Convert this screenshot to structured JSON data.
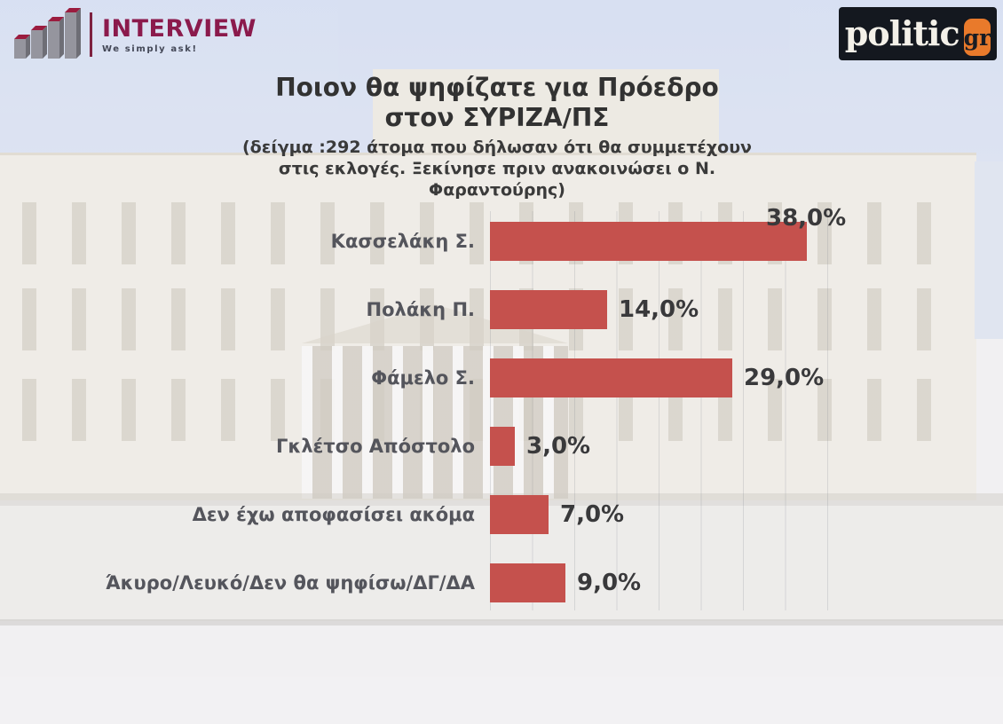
{
  "header": {
    "interview_logo": {
      "name": "INTERVIEW",
      "tagline": "We simply ask!"
    },
    "politic_logo": {
      "name": "politic",
      "suffix": "gr"
    }
  },
  "title": {
    "line1": "Ποιον θα ψηφίζατε για Πρόεδρο",
    "line2": "στον ΣΥΡΙΖΑ/ΠΣ"
  },
  "subtitle": {
    "line1": "(δείγμα :292 άτομα που δήλωσαν ότι θα συμμετέχουν",
    "line2": "στις εκλογές. Ξεκίνησε πριν ανακοινώσει ο Ν.",
    "line3": "Φαραντούρης)"
  },
  "chart_data": {
    "type": "bar",
    "orientation": "horizontal",
    "title": "Ποιον θα ψηφίζατε για Πρόεδρο στον ΣΥΡΙΖΑ/ΠΣ",
    "subtitle": "(δείγμα :292 άτομα που δήλωσαν ότι θα συμμετέχουν στις εκλογές. Ξεκίνησε πριν ανακοινώσει ο Ν. Φαραντούρης)",
    "categories": [
      "Κασσελάκη Σ.",
      "Πολάκη Π.",
      "Φάμελο Σ.",
      "Γκλέτσο Απόστολο",
      "Δεν έχω αποφασίσει ακόμα",
      "Άκυρο/Λευκό/Δεν θα ψηφίσω/ΔΓ/ΔΑ"
    ],
    "values": [
      38,
      14,
      29,
      3,
      7,
      9
    ],
    "value_labels": [
      "38,0%",
      "14,0%",
      "29,0%",
      "3,0%",
      "7,0%",
      "9,0%"
    ],
    "xlim": [
      0,
      40
    ],
    "gridlines_every": 5,
    "legend": "none",
    "bar_color": "#C5514D"
  },
  "colors": {
    "bar": "#C5514D",
    "interview_maroon": "#8B1A4C",
    "politic_background": "#14181F",
    "politic_orange": "#E97A2B",
    "sky": "#CBD8F3"
  }
}
